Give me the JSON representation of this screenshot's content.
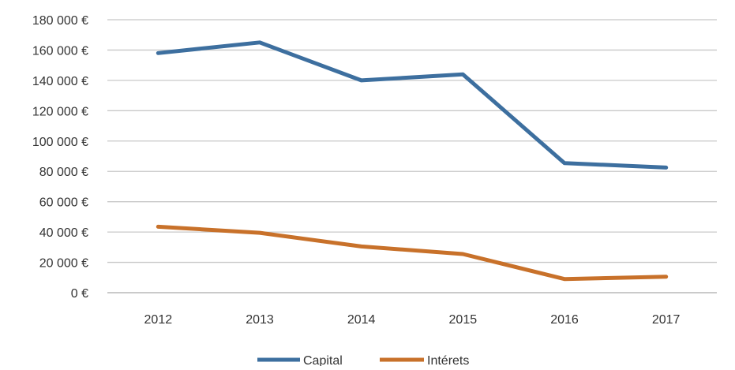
{
  "chart_data": {
    "type": "line",
    "title": "",
    "xlabel": "",
    "ylabel": "",
    "categories": [
      "2012",
      "2013",
      "2014",
      "2015",
      "2016",
      "2017"
    ],
    "ylim": [
      0,
      180000
    ],
    "yticks": [
      0,
      20000,
      40000,
      60000,
      80000,
      100000,
      120000,
      140000,
      160000,
      180000
    ],
    "ytick_labels": [
      "0 €",
      "20 000 €",
      "40 000 €",
      "60 000 €",
      "80 000 €",
      "100 000 €",
      "120 000 €",
      "140 000 €",
      "160 000 €",
      "180 000 €"
    ],
    "grid": true,
    "legend_position": "bottom",
    "series": [
      {
        "name": "Capital",
        "color": "#3d6f9f",
        "values": [
          158000,
          165000,
          140000,
          144000,
          85500,
          82500
        ]
      },
      {
        "name": "Intérets",
        "color": "#c8712a",
        "values": [
          43500,
          39500,
          30500,
          25500,
          9000,
          10500
        ]
      }
    ]
  }
}
